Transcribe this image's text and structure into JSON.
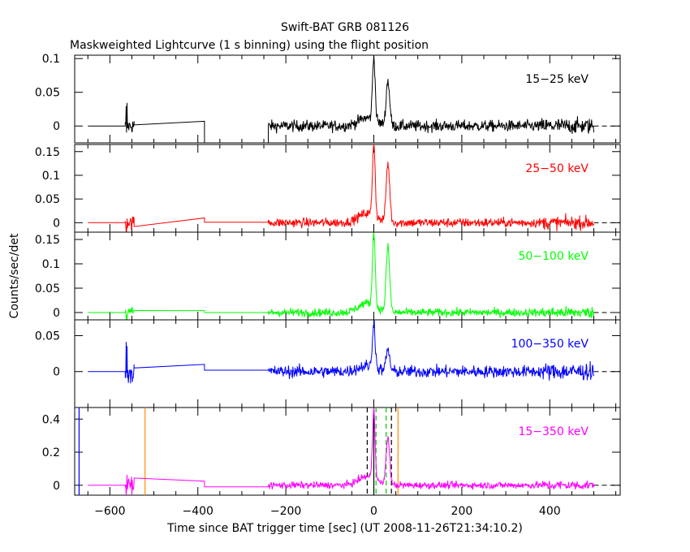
{
  "title": "Swift-BAT GRB 081126",
  "subtitle": "Maskweighted Lightcurve (1 s binning) using the flight position",
  "xlabel": "Time since BAT trigger time [sec] (UT 2008-11-26T21:34:10.2)",
  "ylabel": "Counts/sec/det",
  "chart_data": {
    "type": "line",
    "title": "Swift-BAT GRB 081126",
    "subtitle": "Maskweighted Lightcurve (1 s binning) using the flight position",
    "xlabel": "Time since BAT trigger time [sec] (UT 2008-11-26T21:34:10.2)",
    "ylabel": "Counts/sec/det",
    "xlim": [
      -680,
      560
    ],
    "x_ticks": [
      -600,
      -400,
      -200,
      0,
      200,
      400
    ],
    "x_tick_labels": [
      "−600",
      "−400",
      "−200",
      "0",
      "200",
      "400"
    ],
    "panels": [
      {
        "name": "15–25 keV",
        "label": "15−25 keV",
        "color": "#000000",
        "ylim": [
          -0.025,
          0.105
        ],
        "y_ticks": [
          0,
          0.05,
          0.1
        ],
        "y_tick_labels": [
          "0",
          "0.05",
          "0.1"
        ],
        "baseline_segments": [
          [
            -650,
            -565,
            0
          ],
          [
            -545,
            -385,
            0.007
          ],
          [
            -385,
            -240,
            -0.025
          ]
        ],
        "noise_ranges": [
          [
            -565,
            -545,
            0.01
          ],
          [
            -240,
            500,
            0.006
          ]
        ],
        "peaks": [
          {
            "t": 0,
            "v": 0.1
          },
          {
            "t": 32,
            "v": 0.07
          }
        ]
      },
      {
        "name": "25–50 keV",
        "label": "25−50 keV",
        "color": "#ff0000",
        "ylim": [
          -0.02,
          0.165
        ],
        "y_ticks": [
          0,
          0.05,
          0.1,
          0.15
        ],
        "y_tick_labels": [
          "0",
          "0.05",
          "0.1",
          "0.15"
        ],
        "baseline_segments": [
          [
            -650,
            -565,
            0
          ],
          [
            -545,
            -385,
            0.01
          ],
          [
            -385,
            -240,
            0.001
          ]
        ],
        "noise_ranges": [
          [
            -565,
            -545,
            0.012
          ],
          [
            -240,
            500,
            0.007
          ]
        ],
        "peaks": [
          {
            "t": 0,
            "v": 0.165
          },
          {
            "t": 32,
            "v": 0.13
          }
        ]
      },
      {
        "name": "50–100 keV",
        "label": "50−100 keV",
        "color": "#00ff00",
        "ylim": [
          -0.015,
          0.165
        ],
        "y_ticks": [
          0,
          0.05,
          0.1,
          0.15
        ],
        "y_tick_labels": [
          "0",
          "0.05",
          "0.1",
          "0.15"
        ],
        "baseline_segments": [
          [
            -650,
            -565,
            0
          ],
          [
            -545,
            -385,
            0.004
          ],
          [
            -385,
            -240,
            0.0
          ]
        ],
        "noise_ranges": [
          [
            -565,
            -545,
            0.01
          ],
          [
            -240,
            500,
            0.006
          ]
        ],
        "peaks": [
          {
            "t": 0,
            "v": 0.163
          },
          {
            "t": 32,
            "v": 0.14
          }
        ]
      },
      {
        "name": "100–350 keV",
        "label": "100−350 keV",
        "color": "#0000ff",
        "ylim": [
          -0.05,
          0.072
        ],
        "y_ticks": [
          0,
          0.05
        ],
        "y_tick_labels": [
          "0",
          "0.05"
        ],
        "baseline_segments": [
          [
            -650,
            -565,
            0
          ],
          [
            -545,
            -385,
            0.01
          ],
          [
            -385,
            -240,
            0.002
          ]
        ],
        "noise_ranges": [
          [
            -565,
            -545,
            0.015
          ],
          [
            -240,
            500,
            0.006
          ]
        ],
        "peaks": [
          {
            "t": 0,
            "v": 0.068
          },
          {
            "t": 32,
            "v": 0.032
          }
        ]
      },
      {
        "name": "15–350 keV",
        "label": "15−350 keV",
        "color": "#ff00ff",
        "ylim": [
          -0.06,
          0.47
        ],
        "y_ticks": [
          0,
          0.2,
          0.4
        ],
        "y_tick_labels": [
          "0",
          "0.2",
          "0.4"
        ],
        "baseline_segments": [
          [
            -650,
            -565,
            0
          ],
          [
            -545,
            -385,
            0.025
          ],
          [
            -385,
            -240,
            -0.01
          ]
        ],
        "noise_ranges": [
          [
            -565,
            -545,
            0.04
          ],
          [
            -240,
            500,
            0.015
          ]
        ],
        "peaks": [
          {
            "t": 0,
            "v": 0.44
          },
          {
            "t": 32,
            "v": 0.3
          }
        ],
        "markers": [
          {
            "t": -670,
            "color": "#0000ff",
            "style": "solid"
          },
          {
            "t": -520,
            "color": "#ff8c00",
            "style": "solid"
          },
          {
            "t": 55,
            "color": "#ff8c00",
            "style": "solid"
          },
          {
            "t": -15,
            "color": "#000000",
            "style": "dashed"
          },
          {
            "t": 40,
            "color": "#000000",
            "style": "dashed"
          },
          {
            "t": 5,
            "color": "#00cc00",
            "style": "dashed"
          },
          {
            "t": 28,
            "color": "#00cc00",
            "style": "dashed"
          },
          {
            "t": 0,
            "color": "#000000",
            "style": "solid"
          }
        ]
      }
    ]
  }
}
